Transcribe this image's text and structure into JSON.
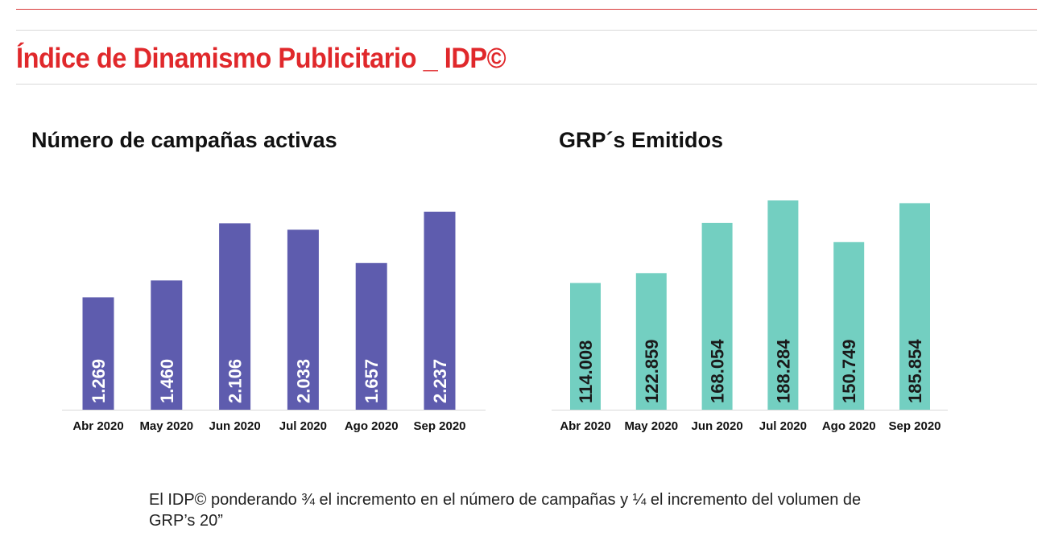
{
  "page": {
    "title": "Índice de Dinamismo Publicitario _ IDP©",
    "title_color": "#e0282b",
    "footnote": "El IDP© ponderando ¾ el incremento en el número de campañas y ¼ el incremento del volumen de GRP’s 20”"
  },
  "chart_data": [
    {
      "type": "bar",
      "title": "Número de campañas activas",
      "categories": [
        "Abr 2020",
        "May 2020",
        "Jun 2020",
        "Jul 2020",
        "Ago 2020",
        "Sep 2020"
      ],
      "values": [
        1269,
        1460,
        2106,
        2033,
        1657,
        2237
      ],
      "data_labels": [
        "1.269",
        "1.460",
        "2.106",
        "2.033",
        "1.657",
        "2.237"
      ],
      "xlabel": "",
      "ylabel": "",
      "grid": false,
      "legend": "none",
      "color": "#5e5cae",
      "label_color": "#ffffff"
    },
    {
      "type": "bar",
      "title": "GRP´s Emitidos",
      "categories": [
        "Abr 2020",
        "May 2020",
        "Jun 2020",
        "Jul 2020",
        "Ago 2020",
        "Sep 2020"
      ],
      "values": [
        114008,
        122859,
        168054,
        188284,
        150749,
        185854
      ],
      "data_labels": [
        "114.008",
        "122.859",
        "168.054",
        "188.284",
        "150.749",
        "185.854"
      ],
      "xlabel": "",
      "ylabel": "",
      "grid": false,
      "legend": "none",
      "color": "#73cfc1",
      "label_color": "#1a1a1a"
    }
  ]
}
